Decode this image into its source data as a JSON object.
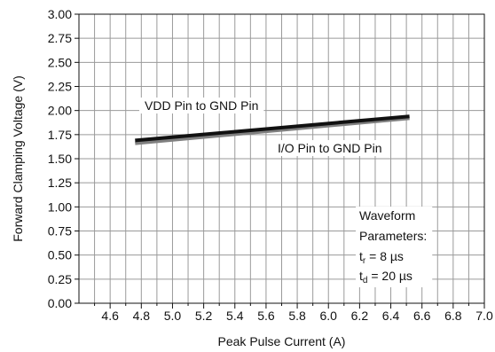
{
  "chart_data": {
    "type": "line",
    "xlabel": "Peak Pulse Current (A)",
    "ylabel": "Forward Clamping Voltage (V)",
    "xlim": [
      4.4,
      7.0
    ],
    "ylim": [
      0.0,
      3.0
    ],
    "x_ticks": [
      "4.6",
      "4.8",
      "5.0",
      "5.2",
      "5.4",
      "5.6",
      "5.8",
      "6.0",
      "6.2",
      "6.4",
      "6.6",
      "6.8",
      "7.0"
    ],
    "y_ticks": [
      "0.00",
      "0.25",
      "0.50",
      "0.75",
      "1.00",
      "1.25",
      "1.50",
      "1.75",
      "2.00",
      "2.25",
      "2.50",
      "2.75",
      "3.00"
    ],
    "grid": true,
    "series": [
      {
        "name": "VDD Pin to GND Pin",
        "color": "#111111",
        "x": [
          4.76,
          6.52
        ],
        "y": [
          1.69,
          1.94
        ]
      },
      {
        "name": "I/O Pin to GND Pin",
        "color": "#808080",
        "x": [
          4.76,
          6.52
        ],
        "y": [
          1.66,
          1.92
        ]
      }
    ],
    "annotation": {
      "lines": [
        {
          "label": "Waveform"
        },
        {
          "label": "Parameters:"
        },
        {
          "label": "t",
          "sub": "r",
          "value": " = 8 µs"
        },
        {
          "label": "t",
          "sub": "d",
          "value": " = 20 µs"
        }
      ]
    }
  }
}
